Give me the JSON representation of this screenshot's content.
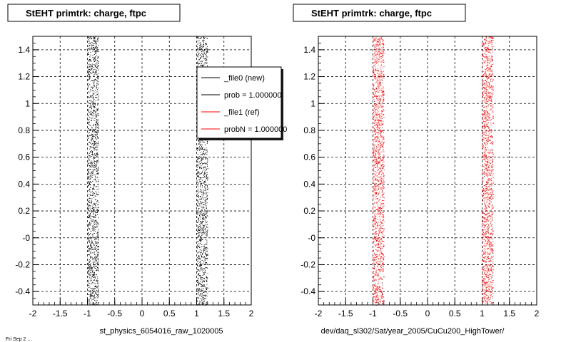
{
  "panels": [
    {
      "title": "StEHT primtrk: charge, ftpc",
      "xlabel": "st_physics_6054016_raw_1020005",
      "legend": [
        {
          "label": "_file0 (new)",
          "color": "#000000"
        },
        {
          "label": "prob = 1.000000",
          "color": "#000000"
        },
        {
          "label": "_file1 (ref)",
          "color": "#ff0000"
        },
        {
          "label": "probN = 1.000000",
          "color": "#ff0000"
        }
      ]
    },
    {
      "title": "StEHT primtrk: charge, ftpc",
      "xlabel": "dev/daq_sl302/Sat/year_2005/CuCu200_HighTower/"
    }
  ],
  "footer_text": "Fri Sep 2 ...",
  "chart_data": [
    {
      "type": "scatter",
      "title": "StEHT primtrk: charge, ftpc",
      "xlabel": "st_physics_6054016_raw_1020005",
      "ylabel": "",
      "xlim": [
        -2,
        2
      ],
      "ylim": [
        -0.5,
        1.5
      ],
      "x_ticks": [
        -2,
        -1.5,
        -1,
        -0.5,
        0,
        0.5,
        1,
        1.5,
        2
      ],
      "x_tick_labels": [
        "-2",
        "-1.5",
        "-1",
        "-0.5",
        "0",
        "0.5",
        "1",
        "1.5",
        "2"
      ],
      "y_ticks": [
        -0.4,
        -0.2,
        0,
        0.2,
        0.4,
        0.6,
        0.8,
        1,
        1.2,
        1.4
      ],
      "y_tick_labels": [
        "-0.4",
        "-0.2",
        "-0",
        "0.2",
        "0.4",
        "0.6",
        "0.8",
        "1",
        "1.2",
        "1.4"
      ],
      "grid": true,
      "legend_position": "top-right",
      "series": [
        {
          "name": "_file0 (new)",
          "color": "#000000",
          "x_bands": [
            [
              -1.0,
              -0.8
            ],
            [
              1.0,
              1.2
            ]
          ]
        }
      ]
    },
    {
      "type": "scatter",
      "title": "StEHT primtrk: charge, ftpc",
      "xlabel": "dev/daq_sl302/Sat/year_2005/CuCu200_HighTower/",
      "ylabel": "",
      "xlim": [
        -2,
        2
      ],
      "ylim": [
        -0.5,
        1.5
      ],
      "x_ticks": [
        -2,
        -1.5,
        -1,
        -0.5,
        0,
        0.5,
        1,
        1.5,
        2
      ],
      "x_tick_labels": [
        "-2",
        "-1.5",
        "-1",
        "-0.5",
        "0",
        "0.5",
        "1",
        "1.5",
        "2"
      ],
      "y_ticks": [
        -0.4,
        -0.2,
        0,
        0.2,
        0.4,
        0.6,
        0.8,
        1,
        1.2,
        1.4
      ],
      "y_tick_labels": [
        "-0.4",
        "-0.2",
        "-0",
        "0.2",
        "0.4",
        "0.6",
        "0.8",
        "1",
        "1.2",
        "1.4"
      ],
      "grid": true,
      "series": [
        {
          "name": "_file1 (ref)",
          "color": "#ff0000",
          "x_bands": [
            [
              -1.0,
              -0.8
            ],
            [
              1.0,
              1.2
            ]
          ]
        }
      ]
    }
  ]
}
